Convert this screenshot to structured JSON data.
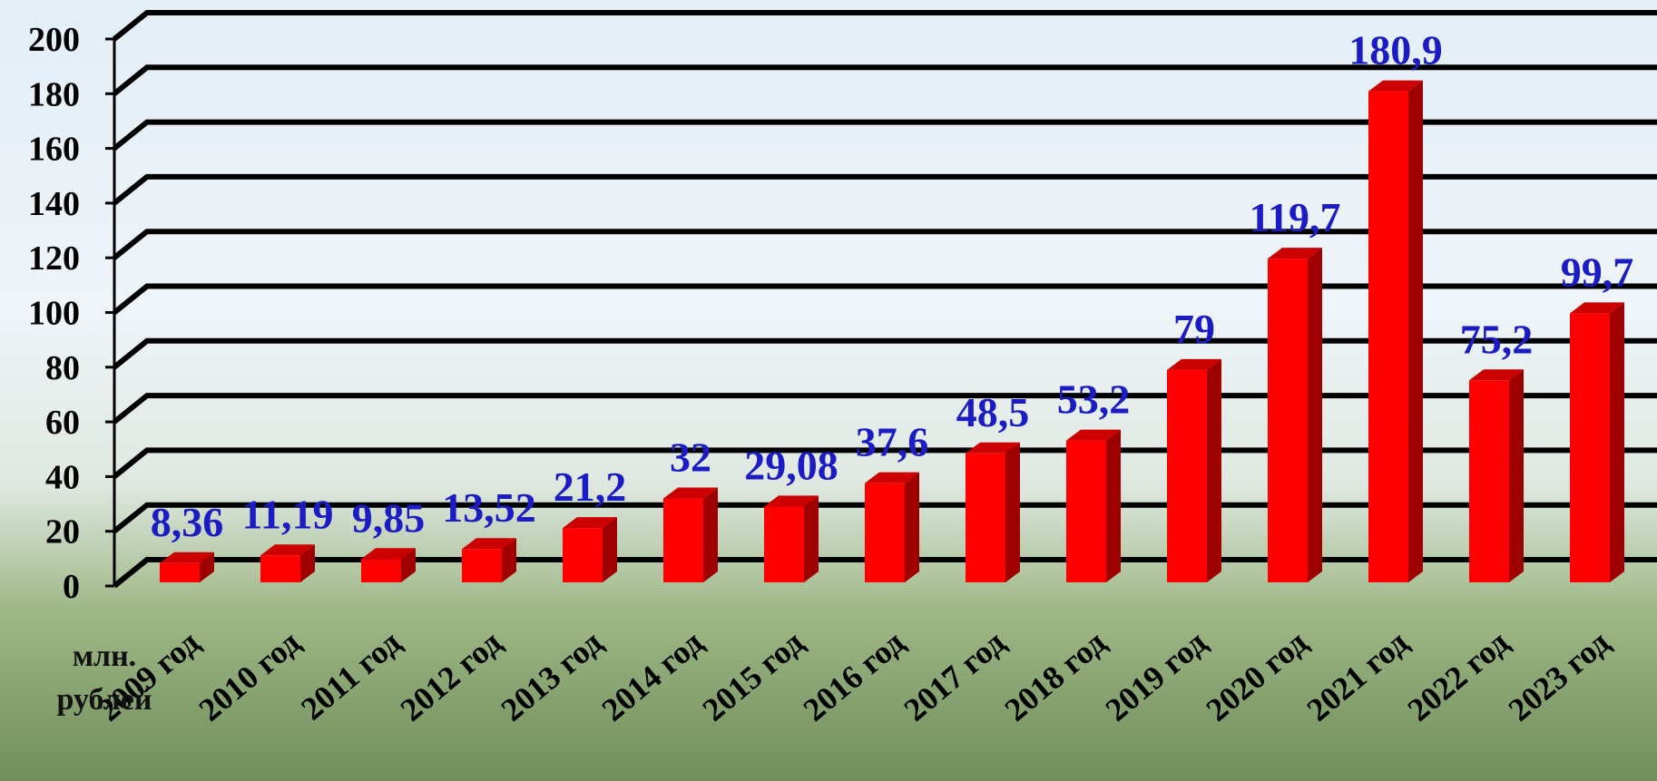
{
  "chart_data": {
    "type": "bar3d",
    "axis_label": "млн. рублей",
    "categories": [
      "2009 год",
      "2010 год",
      "2011 год",
      "2012 год",
      "2013 год",
      "2014 год",
      "2015 год",
      "2016 год",
      "2017 год",
      "2018 год",
      "2019 год",
      "2020 год",
      "2021 год",
      "2022 год",
      "2023 год"
    ],
    "values": [
      8.36,
      11.19,
      9.85,
      13.52,
      21.2,
      32,
      29.08,
      37.6,
      48.5,
      53.2,
      79,
      119.7,
      180.9,
      75.2,
      99.7
    ],
    "value_labels": [
      "8,36",
      "11,19",
      "9,85",
      "13,52",
      "21,2",
      "32",
      "29,08",
      "37,6",
      "48,5",
      "53,2",
      "79",
      "119,7",
      "180,9",
      "75,2",
      "99,7"
    ],
    "color": "#ff0000",
    "label_color": "#1c1cc4",
    "ylim": [
      0,
      200
    ],
    "yticks": [
      0,
      20,
      40,
      60,
      80,
      100,
      120,
      140,
      160,
      180,
      200
    ],
    "grid": true
  }
}
